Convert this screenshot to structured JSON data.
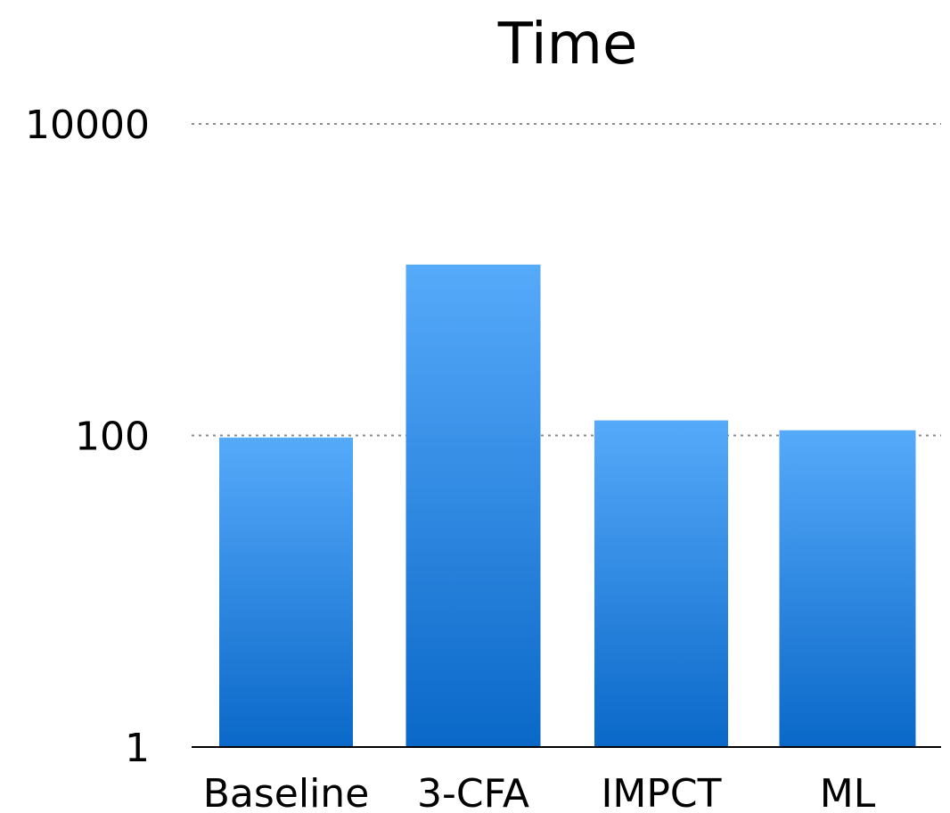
{
  "chart_data": {
    "type": "bar",
    "title": "Time",
    "xlabel": "",
    "ylabel": "",
    "yscale": "log",
    "ylim": [
      1,
      10000
    ],
    "yticks": [
      1,
      100,
      10000
    ],
    "ytick_labels": [
      "1",
      "100",
      "10000"
    ],
    "grid": "horizontal dotted at major ticks",
    "legend": "none",
    "categories": [
      "Baseline",
      "3-CFA",
      "IMPCT",
      "ML"
    ],
    "values": [
      97,
      1250,
      125,
      108
    ],
    "colors": {
      "bar_top": "#56AAFA",
      "bar_bottom": "#0A68C8",
      "grid": "#8A8A8A",
      "axis": "#000000"
    }
  }
}
